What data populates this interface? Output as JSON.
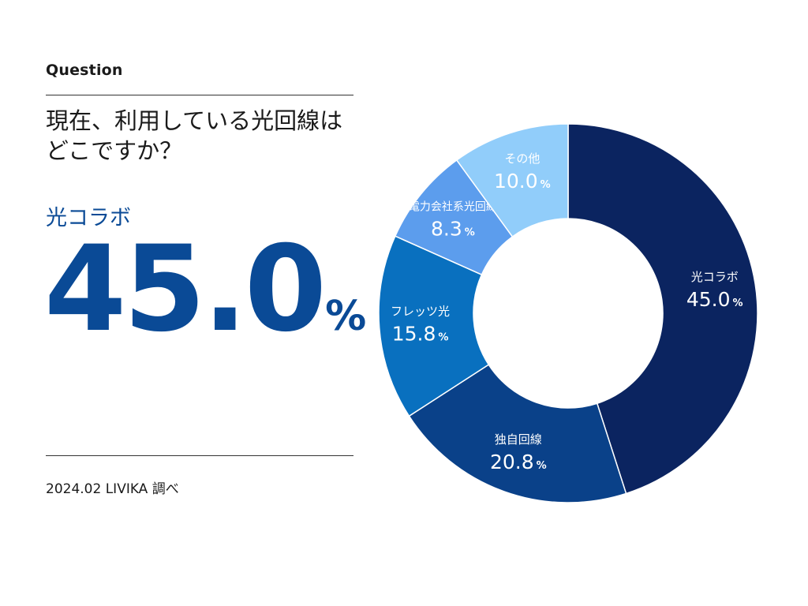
{
  "question_label": "Question",
  "question_lines": [
    "現在、利用している光回線は",
    "どこですか？"
  ],
  "highlight": {
    "label": "光コラボ",
    "value": "45.0",
    "unit": "%"
  },
  "source": "2024.02 LIVIKA 調べ",
  "chart_data": {
    "type": "pie",
    "donut": true,
    "start": "top",
    "direction": "clockwise",
    "unit": "%",
    "slices": [
      {
        "label": "光コラボ",
        "value": 45.0,
        "display": "45.0",
        "color": "#0b2460"
      },
      {
        "label": "独自回線",
        "value": 20.8,
        "display": "20.8",
        "color": "#0a4189"
      },
      {
        "label": "フレッツ光",
        "value": 15.8,
        "display": "15.8",
        "color": "#0970bf"
      },
      {
        "label": "電力会社系光回線",
        "value": 8.3,
        "display": "8.3",
        "color": "#5c9ded"
      },
      {
        "label": "その他",
        "value": 10.0,
        "display": "10.0",
        "color": "#91cdfa"
      }
    ]
  }
}
